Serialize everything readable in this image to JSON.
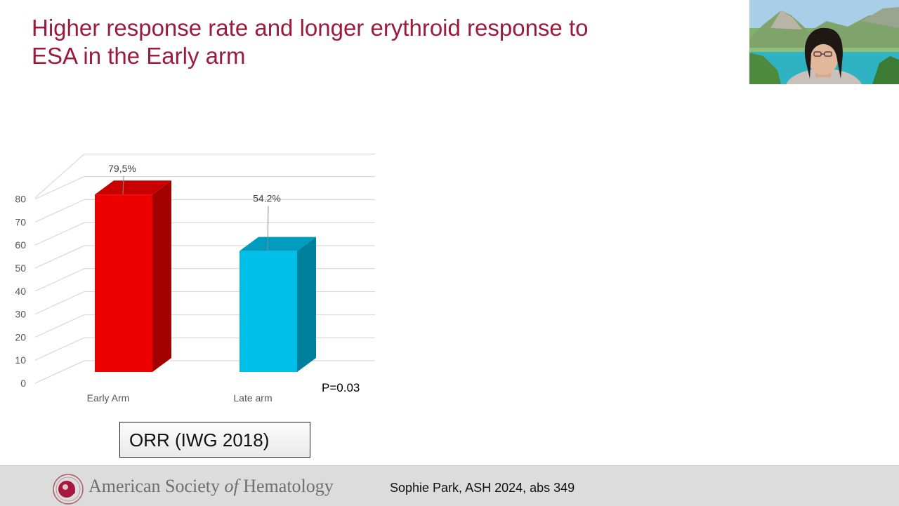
{
  "slide": {
    "title_line1": "Higher response rate and longer erythroid response to",
    "title_line2": "ESA in the Early arm",
    "p_value": "P=0.03",
    "box_label": "ORR (IWG 2018)"
  },
  "footer": {
    "org_name_part1": "American Society ",
    "org_name_of": "of",
    "org_name_part2": " Hematology",
    "citation": "Sophie Park, ASH 2024, abs 349"
  },
  "colors": {
    "title": "#9b1b3d",
    "early_front": "#ee0000",
    "early_side": "#a30000",
    "early_top": "#c80000",
    "late_front": "#00bfe8",
    "late_side": "#00809c",
    "late_top": "#009cc0"
  },
  "chart_data": {
    "type": "bar",
    "style": "3d",
    "categories": [
      "Early Arm",
      "Late arm"
    ],
    "values": [
      79.5,
      54.2
    ],
    "data_labels": [
      "79,5%",
      "54.2%"
    ],
    "ylim": [
      0,
      80
    ],
    "y_ticks": [
      0,
      10,
      20,
      30,
      40,
      50,
      60,
      70,
      80
    ],
    "grid": true,
    "legend": "none"
  },
  "webcam": {
    "icon": "presenter-video-feed"
  }
}
